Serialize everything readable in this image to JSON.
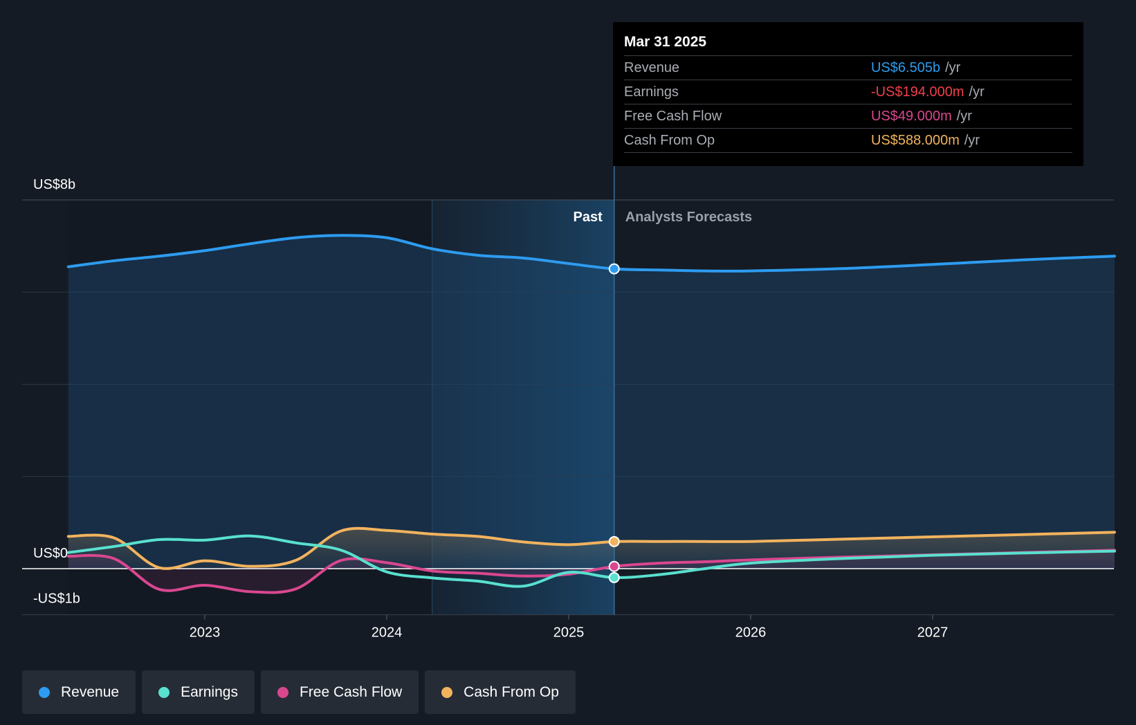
{
  "tooltip": {
    "date": "Mar 31 2025",
    "rows": [
      {
        "label": "Revenue",
        "value": "US$6.505b",
        "unit": "/yr",
        "color": "#2d9cf0"
      },
      {
        "label": "Earnings",
        "value": "-US$194.000m",
        "unit": "/yr",
        "color": "#f0404a"
      },
      {
        "label": "Free Cash Flow",
        "value": "US$49.000m",
        "unit": "/yr",
        "color": "#d9478f"
      },
      {
        "label": "Cash From Op",
        "value": "US$588.000m",
        "unit": "/yr",
        "color": "#f2b35e"
      }
    ]
  },
  "chart_data": {
    "type": "line",
    "y_tick_labels": [
      "US$8b",
      "US$0",
      "-US$1b"
    ],
    "x_tick_labels": [
      "2023",
      "2024",
      "2025",
      "2026",
      "2027"
    ],
    "ylim": [
      -1,
      8
    ],
    "xlim": [
      2022.0,
      2028.0
    ],
    "section_labels": {
      "past": "Past",
      "forecast": "Analysts Forecasts"
    },
    "divider_x": 2025.25,
    "past_highlight_start": 2024.25,
    "grid": true,
    "legend_position": "bottom-left",
    "series": [
      {
        "name": "Revenue",
        "color": "#2d9cf0",
        "points": [
          [
            2022.25,
            6.55
          ],
          [
            2022.5,
            6.68
          ],
          [
            2022.75,
            6.78
          ],
          [
            2023.0,
            6.9
          ],
          [
            2023.25,
            7.05
          ],
          [
            2023.5,
            7.18
          ],
          [
            2023.75,
            7.23
          ],
          [
            2024.0,
            7.18
          ],
          [
            2024.25,
            6.94
          ],
          [
            2024.5,
            6.8
          ],
          [
            2024.75,
            6.74
          ],
          [
            2025.0,
            6.62
          ],
          [
            2025.25,
            6.505
          ],
          [
            2025.5,
            6.48
          ],
          [
            2025.75,
            6.46
          ],
          [
            2026.0,
            6.46
          ],
          [
            2026.5,
            6.51
          ],
          [
            2027.0,
            6.6
          ],
          [
            2027.5,
            6.7
          ],
          [
            2028.0,
            6.78
          ]
        ]
      },
      {
        "name": "Earnings",
        "color": "#59e0cf",
        "points": [
          [
            2022.25,
            0.35
          ],
          [
            2022.5,
            0.48
          ],
          [
            2022.75,
            0.63
          ],
          [
            2023.0,
            0.62
          ],
          [
            2023.25,
            0.71
          ],
          [
            2023.5,
            0.56
          ],
          [
            2023.75,
            0.4
          ],
          [
            2024.0,
            -0.07
          ],
          [
            2024.25,
            -0.2
          ],
          [
            2024.5,
            -0.27
          ],
          [
            2024.75,
            -0.38
          ],
          [
            2025.0,
            -0.08
          ],
          [
            2025.25,
            -0.194
          ],
          [
            2025.5,
            -0.13
          ],
          [
            2025.75,
            0.0
          ],
          [
            2026.0,
            0.12
          ],
          [
            2026.5,
            0.22
          ],
          [
            2027.0,
            0.29
          ],
          [
            2027.5,
            0.34
          ],
          [
            2028.0,
            0.38
          ]
        ]
      },
      {
        "name": "Free Cash Flow",
        "color": "#d9478f",
        "points": [
          [
            2022.25,
            0.27
          ],
          [
            2022.5,
            0.22
          ],
          [
            2022.75,
            -0.45
          ],
          [
            2023.0,
            -0.36
          ],
          [
            2023.25,
            -0.5
          ],
          [
            2023.5,
            -0.44
          ],
          [
            2023.75,
            0.18
          ],
          [
            2024.0,
            0.13
          ],
          [
            2024.25,
            -0.05
          ],
          [
            2024.5,
            -0.1
          ],
          [
            2024.75,
            -0.16
          ],
          [
            2025.0,
            -0.12
          ],
          [
            2025.25,
            0.049
          ],
          [
            2025.5,
            0.12
          ],
          [
            2025.75,
            0.15
          ],
          [
            2026.0,
            0.19
          ],
          [
            2026.5,
            0.25
          ],
          [
            2027.0,
            0.3
          ],
          [
            2027.5,
            0.35
          ],
          [
            2028.0,
            0.4
          ]
        ]
      },
      {
        "name": "Cash From Op",
        "color": "#f2b35e",
        "points": [
          [
            2022.25,
            0.7
          ],
          [
            2022.5,
            0.67
          ],
          [
            2022.75,
            0.02
          ],
          [
            2023.0,
            0.17
          ],
          [
            2023.25,
            0.05
          ],
          [
            2023.5,
            0.18
          ],
          [
            2023.75,
            0.82
          ],
          [
            2024.0,
            0.83
          ],
          [
            2024.25,
            0.75
          ],
          [
            2024.5,
            0.7
          ],
          [
            2024.75,
            0.58
          ],
          [
            2025.0,
            0.52
          ],
          [
            2025.25,
            0.588
          ],
          [
            2025.5,
            0.59
          ],
          [
            2025.75,
            0.59
          ],
          [
            2026.0,
            0.59
          ],
          [
            2026.5,
            0.64
          ],
          [
            2027.0,
            0.69
          ],
          [
            2027.5,
            0.74
          ],
          [
            2028.0,
            0.79
          ]
        ]
      }
    ]
  },
  "legend": [
    {
      "label": "Revenue",
      "color": "#2d9cf0"
    },
    {
      "label": "Earnings",
      "color": "#59e0cf"
    },
    {
      "label": "Free Cash Flow",
      "color": "#d9478f"
    },
    {
      "label": "Cash From Op",
      "color": "#f2b35e"
    }
  ]
}
